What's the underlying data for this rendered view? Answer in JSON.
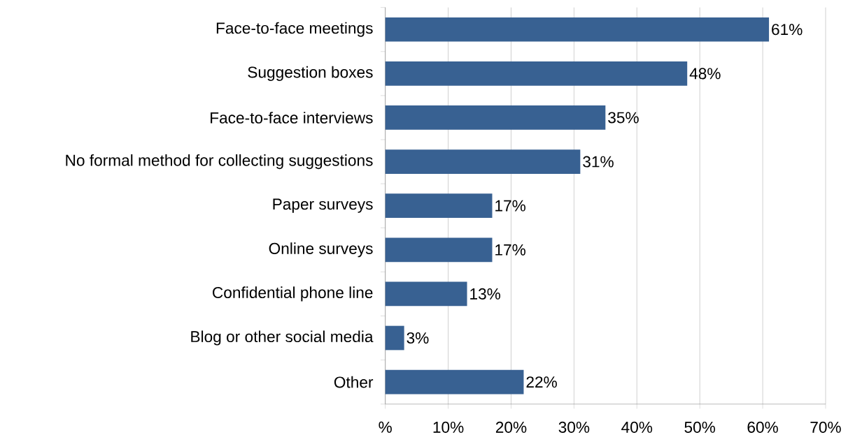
{
  "chart_data": {
    "type": "bar",
    "orientation": "horizontal",
    "categories": [
      "Face-to-face meetings",
      "Suggestion boxes",
      "Face-to-face interviews",
      "No formal method for collecting suggestions",
      "Paper surveys",
      "Online surveys",
      "Confidential phone line",
      "Blog or other social media",
      "Other"
    ],
    "values": [
      61,
      48,
      35,
      31,
      17,
      17,
      13,
      3,
      22
    ],
    "value_labels": [
      "61%",
      "48%",
      "35%",
      "31%",
      "17%",
      "17%",
      "13%",
      "3%",
      "22%"
    ],
    "color": "#386192",
    "xlim": [
      0,
      70
    ],
    "xticks": [
      {
        "value": 0,
        "label": "%"
      },
      {
        "value": 10,
        "label": "10%"
      },
      {
        "value": 20,
        "label": "20%"
      },
      {
        "value": 30,
        "label": "30%"
      },
      {
        "value": 40,
        "label": "40%"
      },
      {
        "value": 50,
        "label": "50%"
      },
      {
        "value": 60,
        "label": "60%"
      },
      {
        "value": 70,
        "label": "70%"
      }
    ],
    "grid": "x"
  }
}
